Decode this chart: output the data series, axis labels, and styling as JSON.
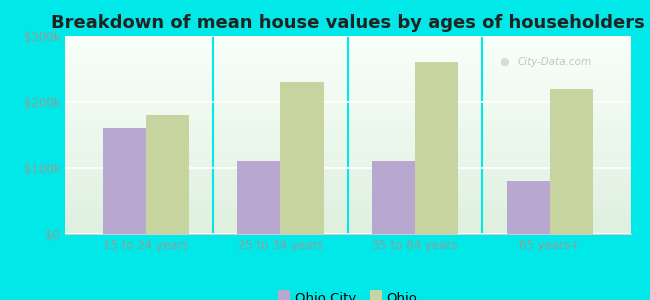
{
  "title": "Breakdown of mean house values by ages of householders",
  "categories": [
    "15 to 24 years",
    "25 to 34 years",
    "35 to 64 years",
    "65 years+"
  ],
  "ohio_city_values": [
    160000,
    110000,
    110000,
    80000
  ],
  "ohio_values": [
    180000,
    230000,
    260000,
    220000
  ],
  "ohio_city_color": "#b8a8d0",
  "ohio_color": "#c8d4a0",
  "background_color": "#00e8e8",
  "ylim": [
    0,
    300000
  ],
  "yticks": [
    0,
    100000,
    200000,
    300000
  ],
  "ytick_labels": [
    "$0",
    "$100k",
    "$200k",
    "$300k"
  ],
  "legend_labels": [
    "Ohio City",
    "Ohio"
  ],
  "title_fontsize": 13,
  "tick_fontsize": 8.5,
  "legend_fontsize": 9.5,
  "bar_width": 0.32,
  "watermark_text": "City-Data.com"
}
